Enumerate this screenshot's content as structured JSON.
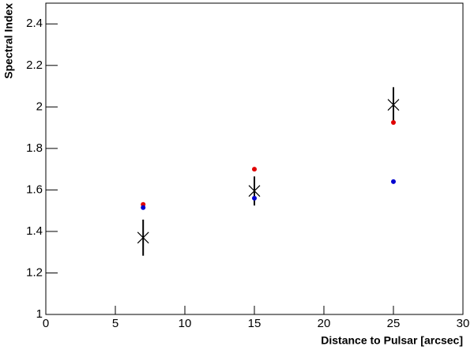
{
  "chart_data": {
    "type": "scatter",
    "x_label": "Distance to Pulsar [arcsec]",
    "y_label": "Spectral Index",
    "xlim": [
      0,
      30
    ],
    "xticks": [
      0,
      5,
      10,
      15,
      20,
      25,
      30
    ],
    "ylim": [
      1,
      2.5
    ],
    "yticks": [
      1,
      1.2,
      1.4,
      1.6,
      1.8,
      2,
      2.2,
      2.4
    ],
    "series": [
      {
        "marker": "cross",
        "color": "#000000",
        "x": [
          7,
          15,
          25
        ],
        "values": [
          1.37,
          1.595,
          2.01
        ],
        "errors": [
          0.087,
          0.07,
          0.085
        ]
      },
      {
        "marker": "dot",
        "color": "#e00000",
        "x": [
          7,
          15,
          25
        ],
        "values": [
          1.53,
          1.7,
          1.925
        ]
      },
      {
        "marker": "dot",
        "color": "#0000d0",
        "x": [
          7,
          15,
          25
        ],
        "values": [
          1.515,
          1.56,
          1.64
        ]
      }
    ]
  }
}
